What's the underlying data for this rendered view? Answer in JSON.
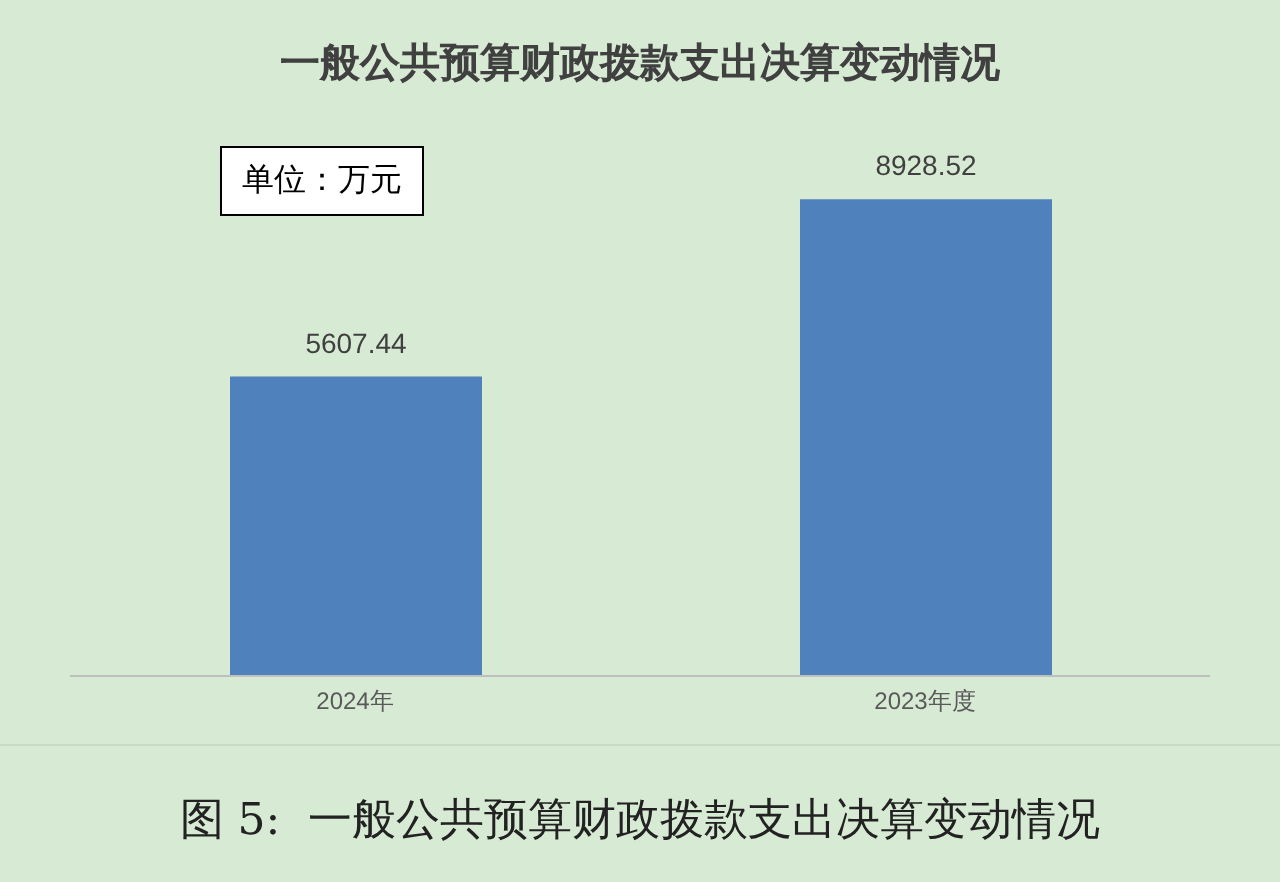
{
  "chart_data": {
    "type": "bar",
    "title": "一般公共预算财政拨款支出决算变动情况",
    "categories": [
      "2024年",
      "2023年度"
    ],
    "values": [
      5607.44,
      8928.52
    ],
    "color": "#4f81bd",
    "data_labels": true,
    "tick_labels": "x",
    "grid": false,
    "annotations": [
      "单位：万元",
      "图 5:  一般公共预算财政拨款支出决算变动情况"
    ]
  }
}
